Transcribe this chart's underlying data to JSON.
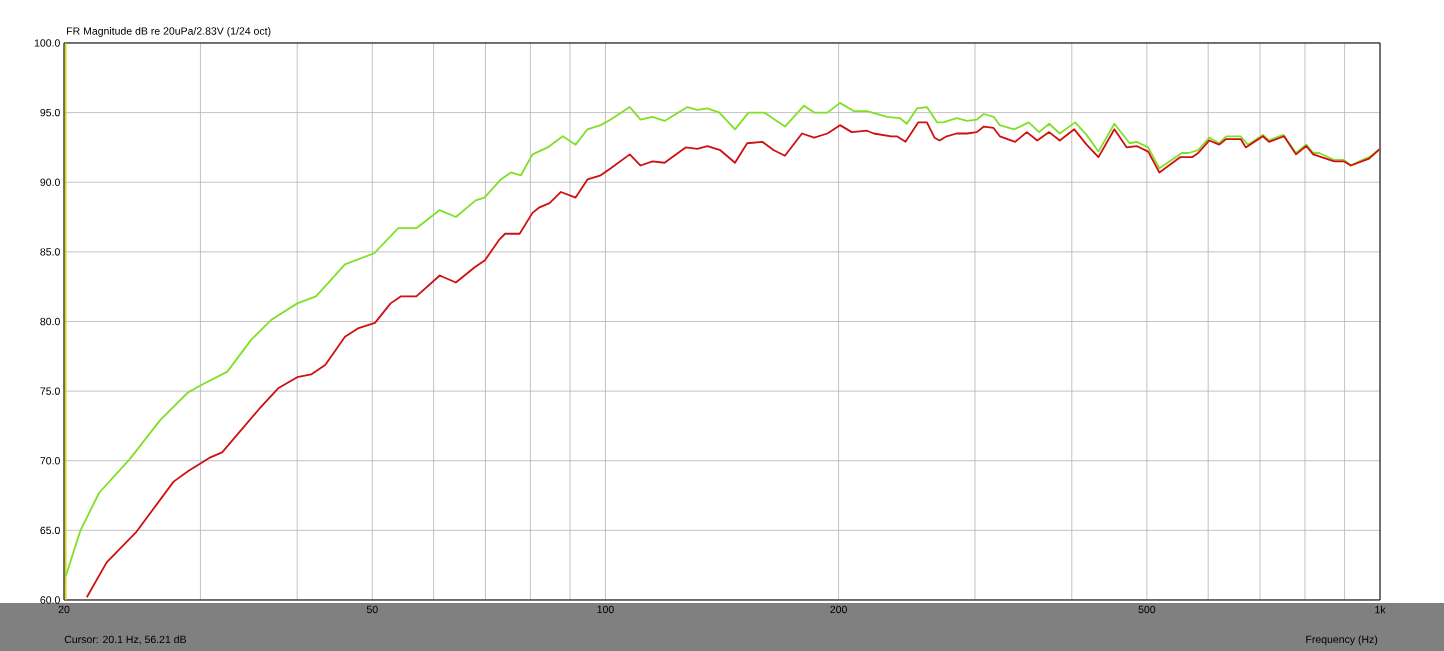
{
  "chart_data": {
    "type": "line",
    "title": "FR Magnitude dB re 20uPa/2.83V (1/24 oct)",
    "xlabel": "Frequency (Hz)",
    "annotations": [
      "Cursor: 20.1 Hz, 56.21 dB"
    ],
    "log": "x",
    "grid": true,
    "line_style": "solid",
    "xlim": [
      20,
      1000
    ],
    "ylim": [
      60,
      100
    ],
    "xticks": [
      20,
      {
        "value": 30,
        "label": null
      },
      {
        "value": 40,
        "label": null
      },
      50,
      {
        "value": 60,
        "label": null
      },
      {
        "value": 70,
        "label": null
      },
      {
        "value": 80,
        "label": null
      },
      {
        "value": 90,
        "label": null
      },
      100,
      200,
      {
        "value": 300,
        "label": null
      },
      {
        "value": 400,
        "label": null
      },
      500,
      {
        "value": 600,
        "label": null
      },
      {
        "value": 700,
        "label": null
      },
      {
        "value": 800,
        "label": null
      },
      {
        "value": 900,
        "label": null
      },
      {
        "value": 1000,
        "label": "1k"
      }
    ],
    "yticks": [
      {
        "value": 60,
        "label": "60.0"
      },
      {
        "value": 65,
        "label": "65.0"
      },
      {
        "value": 70,
        "label": "70.0"
      },
      {
        "value": 75,
        "label": "75.0"
      },
      {
        "value": 80,
        "label": "80.0"
      },
      {
        "value": 85,
        "label": "85.0"
      },
      {
        "value": 90,
        "label": "90.0"
      },
      {
        "value": 95,
        "label": "95.0"
      },
      {
        "value": 100,
        "label": "100.0"
      }
    ],
    "ref_lines": [
      {
        "axis": "x",
        "value": 20.1,
        "color": "#d8d800"
      }
    ],
    "series": [
      {
        "color": "#80e028",
        "x": [
          20.1,
          21.0,
          22.2,
          24.3,
          26.6,
          28.9,
          30,
          32.5,
          34.9,
          37.0,
          40,
          42.3,
          46.1,
          50.3,
          54.0,
          57.0,
          61.1,
          64.1,
          68.0,
          69.8,
          73.3,
          75.5,
          77.8,
          80.5,
          84.2,
          88.1,
          91.5,
          94.8,
          98.6,
          101.6,
          107.5,
          111,
          115,
          119.2,
          127.6,
          131.4,
          135.4,
          140.3,
          147,
          153,
          160.3,
          170.5,
          180.5,
          186,
          193.5,
          200.8,
          209.4,
          217.6,
          231,
          240,
          245,
          252.5,
          260,
          268,
          273,
          284,
          293,
          301.6,
          308,
          317,
          323,
          337,
          352,
          363,
          374,
          386,
          404,
          418,
          433,
          454,
          475,
          485,
          502,
          519,
          555,
          566,
          582.5,
          602,
          620,
          633,
          661,
          675,
          706,
          719,
          750,
          779,
          803,
          820,
          835,
          873,
          898,
          917,
          940,
          968,
          1000
        ],
        "values": [
          61.7,
          65.0,
          67.7,
          70.1,
          72.9,
          74.9,
          75.4,
          76.4,
          78.7,
          80.1,
          81.3,
          81.8,
          84.1,
          84.9,
          86.7,
          86.7,
          88.0,
          87.5,
          88.7,
          88.9,
          90.2,
          90.7,
          90.5,
          92.0,
          92.5,
          93.3,
          92.7,
          93.8,
          94.1,
          94.5,
          95.4,
          94.5,
          94.7,
          94.4,
          95.4,
          95.2,
          95.3,
          95.0,
          93.8,
          95.0,
          95.0,
          94.0,
          95.5,
          95.0,
          95.0,
          95.7,
          95.1,
          95.1,
          94.7,
          94.6,
          94.2,
          95.3,
          95.4,
          94.3,
          94.3,
          94.6,
          94.4,
          94.5,
          94.9,
          94.7,
          94.1,
          93.8,
          94.3,
          93.6,
          94.2,
          93.5,
          94.3,
          93.4,
          92.2,
          94.2,
          92.8,
          92.9,
          92.5,
          91.0,
          92.1,
          92.1,
          92.3,
          93.2,
          92.8,
          93.3,
          93.3,
          92.7,
          93.4,
          93.0,
          93.4,
          92.1,
          92.7,
          92.1,
          92.1,
          91.6,
          91.6,
          91.2,
          91.5,
          91.8,
          92.4
        ]
      },
      {
        "color": "#d01010",
        "x": [
          21.4,
          22.7,
          24.8,
          27.7,
          29.0,
          30.8,
          32.0,
          35.7,
          37.8,
          40,
          41.7,
          43.5,
          46.1,
          47.9,
          50.4,
          52.8,
          54.4,
          57.0,
          61.1,
          64.1,
          67.8,
          69.9,
          73.0,
          74.2,
          77.5,
          80.5,
          82.2,
          84.7,
          87.6,
          91.5,
          94.8,
          98.6,
          101.6,
          107.5,
          111,
          115,
          119.2,
          126.9,
          131.4,
          135.4,
          140.7,
          147,
          152.4,
          159.4,
          165,
          170.5,
          179.4,
          186,
          193.5,
          200.8,
          208,
          217.6,
          222,
          233.8,
          237.8,
          244,
          253.5,
          260,
          266,
          270,
          275.8,
          284,
          293,
          301.6,
          308,
          317,
          323,
          338,
          350,
          361,
          374,
          386,
          403,
          418,
          433,
          454,
          471,
          485,
          502,
          519,
          552,
          572,
          582.5,
          602,
          620,
          633,
          661,
          671,
          706,
          719,
          752,
          779,
          803,
          820,
          873,
          898,
          917,
          968,
          1000
        ],
        "values": [
          60.2,
          62.7,
          64.9,
          68.5,
          69.3,
          70.2,
          70.6,
          73.7,
          75.2,
          76.0,
          76.2,
          76.9,
          78.9,
          79.5,
          79.9,
          81.3,
          81.8,
          81.8,
          83.3,
          82.8,
          83.9,
          84.4,
          85.9,
          86.3,
          86.3,
          87.8,
          88.2,
          88.5,
          89.3,
          88.9,
          90.2,
          90.5,
          91.0,
          92.0,
          91.2,
          91.5,
          91.4,
          92.5,
          92.4,
          92.6,
          92.3,
          91.4,
          92.8,
          92.9,
          92.3,
          91.9,
          93.5,
          93.2,
          93.5,
          94.1,
          93.6,
          93.7,
          93.5,
          93.3,
          93.3,
          92.9,
          94.3,
          94.3,
          93.2,
          93.0,
          93.3,
          93.5,
          93.5,
          93.6,
          94.0,
          93.9,
          93.3,
          92.9,
          93.6,
          93.0,
          93.6,
          93.0,
          93.8,
          92.7,
          91.8,
          93.8,
          92.5,
          92.6,
          92.2,
          90.7,
          91.8,
          91.8,
          92.1,
          93.0,
          92.7,
          93.1,
          93.1,
          92.5,
          93.3,
          92.9,
          93.3,
          92.0,
          92.6,
          92.0,
          91.5,
          91.5,
          91.2,
          91.7,
          92.4
        ]
      }
    ]
  }
}
